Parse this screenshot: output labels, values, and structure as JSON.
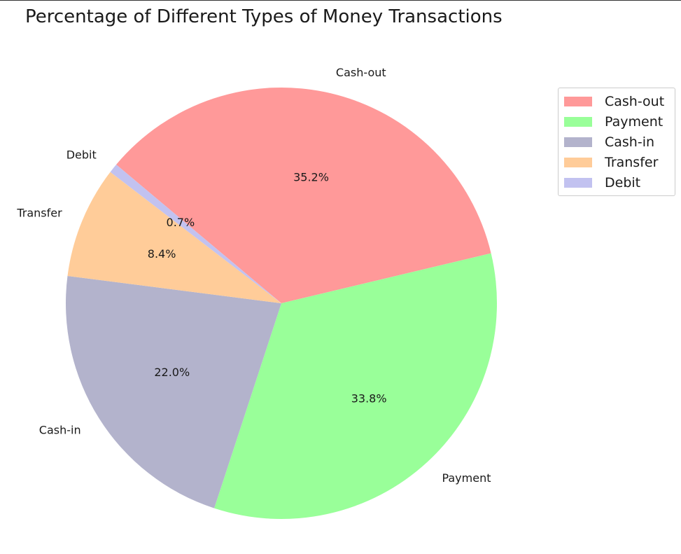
{
  "chart_data": {
    "type": "pie",
    "title": "Percentage of Different Types of Money Transactions",
    "slices": [
      {
        "label": "Cash-out",
        "value": 35.2,
        "pct_text": "35.2%",
        "color": "#ff9999"
      },
      {
        "label": "Payment",
        "value": 33.8,
        "pct_text": "33.8%",
        "color": "#99ff99"
      },
      {
        "label": "Cash-in",
        "value": 22.0,
        "pct_text": "22.0%",
        "color": "#b3b3cc"
      },
      {
        "label": "Transfer",
        "value": 8.4,
        "pct_text": "8.4%",
        "color": "#ffcc99"
      },
      {
        "label": "Debit",
        "value": 0.7,
        "pct_text": "0.7%",
        "color": "#c2c2f0"
      }
    ],
    "legend": {
      "placement": "top-right",
      "entries": [
        "Cash-out",
        "Payment",
        "Cash-in",
        "Transfer",
        "Debit"
      ]
    }
  }
}
